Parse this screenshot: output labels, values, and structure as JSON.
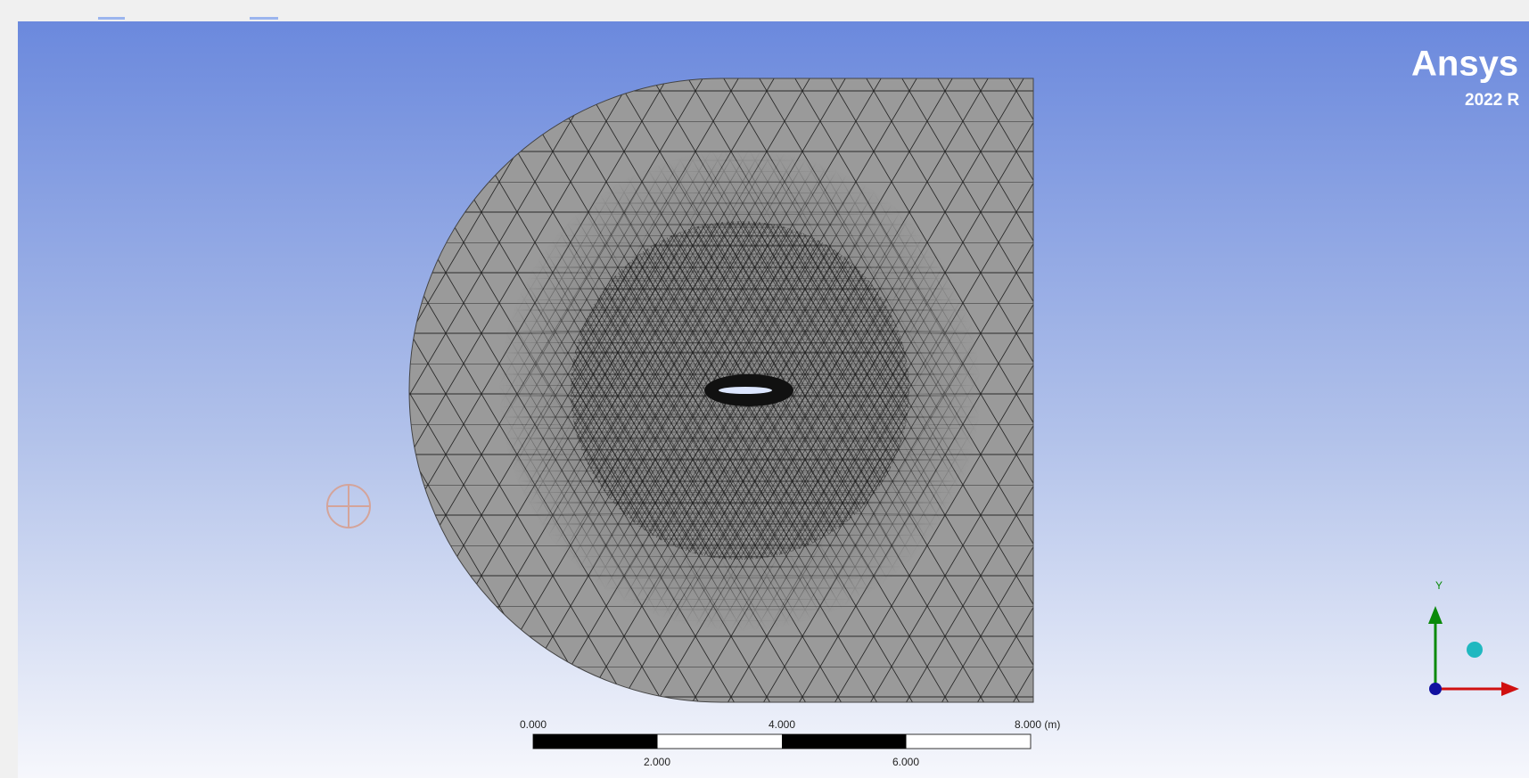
{
  "logo": {
    "brand": "Ansys",
    "version": "2022 R"
  },
  "scale_bar": {
    "top_labels": [
      "0.000",
      "4.000",
      "8.000 (m)"
    ],
    "bottom_labels": [
      "2.000",
      "6.000"
    ]
  },
  "triad": {
    "y_label": "Y"
  }
}
